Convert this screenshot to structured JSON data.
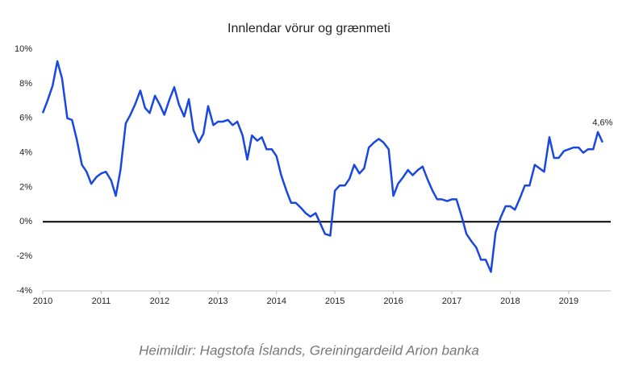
{
  "chart_data": {
    "type": "line",
    "title": "Innlendar vörur og grænmeti",
    "source": "Heimildir: Hagstofa Íslands, Greiningardeild Arion banka",
    "annotation": "4,6%",
    "x": [
      2010.0,
      2010.08,
      2010.17,
      2010.25,
      2010.33,
      2010.42,
      2010.5,
      2010.58,
      2010.67,
      2010.75,
      2010.83,
      2010.92,
      2011.0,
      2011.08,
      2011.17,
      2011.25,
      2011.33,
      2011.42,
      2011.5,
      2011.58,
      2011.67,
      2011.75,
      2011.83,
      2011.92,
      2012.0,
      2012.08,
      2012.17,
      2012.25,
      2012.33,
      2012.42,
      2012.5,
      2012.58,
      2012.67,
      2012.75,
      2012.83,
      2012.92,
      2013.0,
      2013.08,
      2013.17,
      2013.25,
      2013.33,
      2013.42,
      2013.5,
      2013.58,
      2013.67,
      2013.75,
      2013.83,
      2013.92,
      2014.0,
      2014.08,
      2014.17,
      2014.25,
      2014.33,
      2014.42,
      2014.5,
      2014.58,
      2014.67,
      2014.75,
      2014.83,
      2014.92,
      2015.0,
      2015.08,
      2015.17,
      2015.25,
      2015.33,
      2015.42,
      2015.5,
      2015.58,
      2015.67,
      2015.75,
      2015.83,
      2015.92,
      2016.0,
      2016.08,
      2016.17,
      2016.25,
      2016.33,
      2016.42,
      2016.5,
      2016.58,
      2016.67,
      2016.75,
      2016.83,
      2016.92,
      2017.0,
      2017.08,
      2017.17,
      2017.25,
      2017.33,
      2017.42,
      2017.5,
      2017.58,
      2017.67,
      2017.75,
      2017.83,
      2017.92,
      2018.0,
      2018.08,
      2018.17,
      2018.25,
      2018.33,
      2018.42,
      2018.5,
      2018.58,
      2018.67,
      2018.75,
      2018.83,
      2018.92,
      2019.0,
      2019.08,
      2019.17,
      2019.25,
      2019.33,
      2019.42,
      2019.5,
      2019.58
    ],
    "series": [
      {
        "name": "Innlendar vörur og grænmeti",
        "color": "#1a47e0",
        "values": [
          6.3,
          7.0,
          7.9,
          9.3,
          8.3,
          6.0,
          5.9,
          4.8,
          3.3,
          2.9,
          2.2,
          2.6,
          2.8,
          2.9,
          2.4,
          1.5,
          3.0,
          5.7,
          6.2,
          6.8,
          7.6,
          6.6,
          6.3,
          7.3,
          6.8,
          6.2,
          7.1,
          7.8,
          6.8,
          6.1,
          7.1,
          5.3,
          4.6,
          5.1,
          6.7,
          5.6,
          5.8,
          5.8,
          5.9,
          5.6,
          5.8,
          5.0,
          3.6,
          5.0,
          4.7,
          4.9,
          4.2,
          4.2,
          3.8,
          2.7,
          1.8,
          1.1,
          1.1,
          0.8,
          0.5,
          0.3,
          0.5,
          -0.1,
          -0.7,
          -0.8,
          1.8,
          2.1,
          2.1,
          2.5,
          3.3,
          2.8,
          3.1,
          4.3,
          4.6,
          4.8,
          4.6,
          4.2,
          1.5,
          2.2,
          2.6,
          3.0,
          2.7,
          3.0,
          3.2,
          2.5,
          1.8,
          1.3,
          1.3,
          1.2,
          1.3,
          1.3,
          0.3,
          -0.7,
          -1.1,
          -1.5,
          -2.2,
          -2.2,
          -2.9,
          -0.6,
          0.2,
          0.9,
          0.9,
          0.7,
          1.4,
          2.1,
          2.1,
          3.3,
          3.1,
          2.9,
          4.9,
          3.7,
          3.7,
          4.1,
          4.2,
          4.3,
          4.3,
          4.0,
          4.2,
          4.2,
          5.2,
          4.6
        ]
      }
    ],
    "xlim": [
      2010,
      2019.72
    ],
    "xticks": [
      2010,
      2011,
      2012,
      2013,
      2014,
      2015,
      2016,
      2017,
      2018,
      2019
    ],
    "ylim": [
      -4,
      10
    ],
    "yticks": [
      {
        "value": -4,
        "label": "-4%"
      },
      {
        "value": -2,
        "label": "-2%"
      },
      {
        "value": 0,
        "label": "0%"
      },
      {
        "value": 2,
        "label": "2%"
      },
      {
        "value": 4,
        "label": "4%"
      },
      {
        "value": 6,
        "label": "6%"
      },
      {
        "value": 8,
        "label": "8%"
      },
      {
        "value": 10,
        "label": "10%"
      }
    ],
    "zero_line": true
  }
}
